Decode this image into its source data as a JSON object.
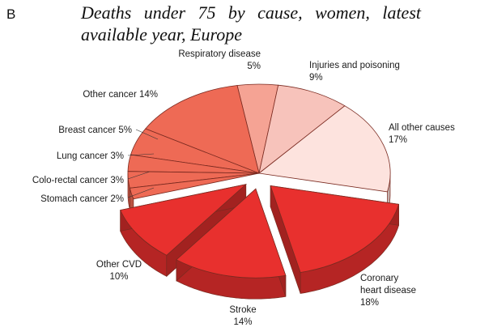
{
  "panel_letter": "B",
  "chart_data": {
    "type": "pie",
    "title": "Deaths under 75 by cause, women, latest available year, Europe",
    "unit": "%",
    "slices": [
      {
        "name": "Coronary heart disease",
        "value": 18,
        "label_lines": [
          "Coronary",
          "heart disease",
          "18%"
        ],
        "color": "#e8302e",
        "exploded": true
      },
      {
        "name": "Stroke",
        "value": 14,
        "label_lines": [
          "Stroke",
          "14%"
        ],
        "color": "#e8302e",
        "exploded": true
      },
      {
        "name": "Other CVD",
        "value": 10,
        "label_lines": [
          "Other CVD",
          "10%"
        ],
        "color": "#e8302e",
        "exploded": true
      },
      {
        "name": "Stomach cancer",
        "value": 2,
        "label_lines": [
          "Stomach cancer 2%"
        ],
        "color": "#ee6a55",
        "exploded": false
      },
      {
        "name": "Colo-rectal cancer",
        "value": 3,
        "label_lines": [
          "Colo-rectal cancer 3%"
        ],
        "color": "#ee6a55",
        "exploded": false
      },
      {
        "name": "Lung cancer",
        "value": 3,
        "label_lines": [
          "Lung cancer 3%"
        ],
        "color": "#ee6a55",
        "exploded": false
      },
      {
        "name": "Breast cancer",
        "value": 5,
        "label_lines": [
          "Breast cancer 5%"
        ],
        "color": "#ee6a55",
        "exploded": false
      },
      {
        "name": "Other cancer",
        "value": 14,
        "label_lines": [
          "Other cancer 14%"
        ],
        "color": "#ee6a55",
        "exploded": false
      },
      {
        "name": "Respiratory disease",
        "value": 5,
        "label_lines": [
          "Respiratory disease",
          "5%"
        ],
        "color": "#f5a394",
        "exploded": false
      },
      {
        "name": "Injuries and poisoning",
        "value": 9,
        "label_lines": [
          "Injuries and poisoning",
          "9%"
        ],
        "color": "#f7c3bb",
        "exploded": false
      },
      {
        "name": "All other causes",
        "value": 17,
        "label_lines": [
          "All other causes",
          "17%"
        ],
        "color": "#fde3de",
        "exploded": false
      }
    ],
    "start_angle_deg": 12,
    "direction": "clockwise",
    "view": "3d-tilted",
    "legend": "none"
  }
}
